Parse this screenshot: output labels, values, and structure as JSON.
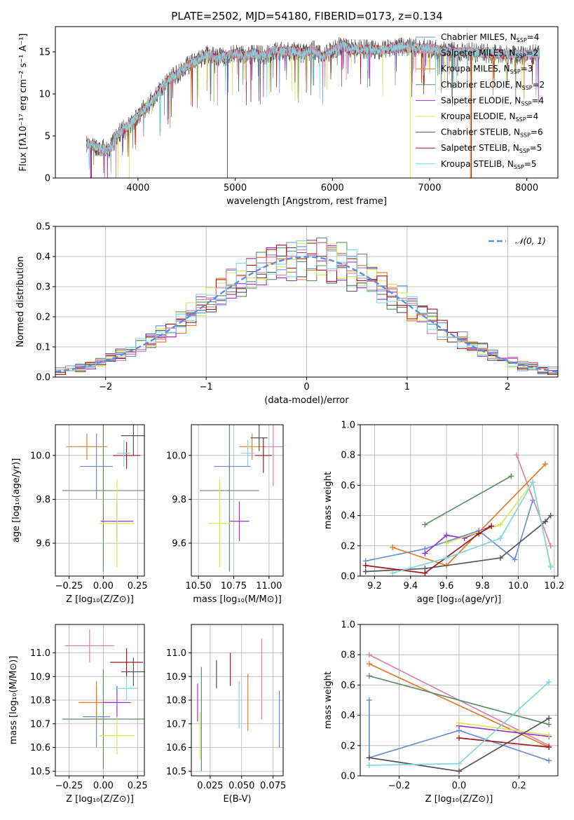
{
  "figure_title": "PLATE=2502, MJD=54180, FIBERID=0173, z=0.134",
  "colors": {
    "c1": "#6a8fd8",
    "c2": "#e07b2a",
    "c3": "#5e8e68",
    "c4": "#9932cc",
    "c5": "#d4e85a",
    "c6": "#555555",
    "c7": "#a0191e",
    "c8": "#e07fa8",
    "c9": "#7fd6e0"
  },
  "chart_data": [
    {
      "type": "line",
      "id": "spectrum",
      "xlabel": "wavelength [Angstrom, rest frame]",
      "ylabel": "Flux [fλ10⁻¹⁷ erg cm⁻² s⁻¹ A⁻¹]",
      "xlim": [
        3150,
        8320
      ],
      "ylim": [
        0,
        18
      ],
      "xticks": [
        4000,
        5000,
        6000,
        7000,
        8000
      ],
      "yticks": [
        0,
        5,
        10,
        15
      ],
      "data_range": [
        3470,
        8130
      ],
      "envelope": [
        [
          3470,
          4.0
        ],
        [
          3550,
          3.8
        ],
        [
          3700,
          3.3
        ],
        [
          3800,
          5.3
        ],
        [
          3900,
          6.2
        ],
        [
          4000,
          7.4
        ],
        [
          4100,
          8.6
        ],
        [
          4200,
          10.0
        ],
        [
          4300,
          11.6
        ],
        [
          4400,
          12.3
        ],
        [
          4500,
          13.3
        ],
        [
          4600,
          13.9
        ],
        [
          4700,
          14.7
        ],
        [
          4800,
          14.3
        ],
        [
          4900,
          14.5
        ],
        [
          5000,
          14.8
        ],
        [
          5100,
          14.5
        ],
        [
          5200,
          14.8
        ],
        [
          5300,
          14.5
        ],
        [
          5400,
          15.2
        ],
        [
          5500,
          15.0
        ],
        [
          5600,
          15.1
        ],
        [
          5700,
          14.8
        ],
        [
          5800,
          15.3
        ],
        [
          5900,
          14.3
        ],
        [
          6000,
          15.2
        ],
        [
          6100,
          15.8
        ],
        [
          6200,
          15.3
        ],
        [
          6300,
          15.3
        ],
        [
          6400,
          15.3
        ],
        [
          6500,
          15.2
        ],
        [
          6600,
          15.4
        ],
        [
          6700,
          15.6
        ],
        [
          6800,
          15.5
        ],
        [
          7000,
          15.4
        ],
        [
          7200,
          15.0
        ],
        [
          7400,
          15.0
        ],
        [
          7600,
          14.8
        ],
        [
          7800,
          14.7
        ],
        [
          8000,
          14.6
        ],
        [
          8130,
          14.8
        ]
      ],
      "series": [
        {
          "name": "Chabrier MILES, N",
          "sub": "SSP",
          "suffix": "=4",
          "color_key": "c1"
        },
        {
          "name": "Salpeter MILES, N",
          "sub": "SSP",
          "suffix": "=2",
          "color_key": "c8"
        },
        {
          "name": "Kroupa MILES, N",
          "sub": "SSP",
          "suffix": "=3",
          "color_key": "c2"
        },
        {
          "name": "Chabrier ELODIE, N",
          "sub": "SSP",
          "suffix": "=2",
          "color_key": "c3"
        },
        {
          "name": "Salpeter ELODIE, N",
          "sub": "SSP",
          "suffix": "=4",
          "color_key": "c4"
        },
        {
          "name": "Kroupa ELODIE, N",
          "sub": "SSP",
          "suffix": "=4",
          "color_key": "c5"
        },
        {
          "name": "Chabrier STELIB, N",
          "sub": "SSP",
          "suffix": "=6",
          "color_key": "c6"
        },
        {
          "name": "Salpeter STELIB, N",
          "sub": "SSP",
          "suffix": "=5",
          "color_key": "c7"
        },
        {
          "name": "Kroupa STELIB, N",
          "sub": "SSP",
          "suffix": "=5",
          "color_key": "c9"
        }
      ],
      "drop_lines": [
        {
          "x": 3520,
          "color_key": "c2"
        },
        {
          "x": 3520,
          "color_key": "c7"
        },
        {
          "x": 3910,
          "color_key": "c5"
        },
        {
          "x": 4920,
          "color_key": "c6"
        },
        {
          "x": 6800,
          "color_key": "c5"
        },
        {
          "x": 7420,
          "color_key": "c2"
        },
        {
          "x": 7430,
          "color_key": "c7"
        }
      ]
    },
    {
      "type": "histogram",
      "id": "residuals",
      "xlabel": "(data-model)/error",
      "ylabel": "Normed distribution",
      "xlim": [
        -2.5,
        2.5
      ],
      "ylim": [
        0,
        0.5
      ],
      "xticks": [
        -2,
        -1,
        0,
        1,
        2
      ],
      "yticks": [
        0.0,
        0.1,
        0.2,
        0.3,
        0.4,
        0.5
      ],
      "bin_start": -2.5,
      "bin_width": 0.1,
      "curve": {
        "label": "N(0,1)",
        "color": "#5b8ee0"
      },
      "approx_series": [
        {
          "color_key": "c1",
          "seed": 1
        },
        {
          "color_key": "c2",
          "seed": 2
        },
        {
          "color_key": "c3",
          "seed": 3
        },
        {
          "color_key": "c4",
          "seed": 4
        },
        {
          "color_key": "c5",
          "seed": 5
        },
        {
          "color_key": "c6",
          "seed": 6
        },
        {
          "color_key": "c7",
          "seed": 7
        },
        {
          "color_key": "c8",
          "seed": 8
        },
        {
          "color_key": "c9",
          "seed": 9
        }
      ]
    },
    {
      "type": "scatter",
      "id": "Z-vs-age",
      "xlabel": "Z [log₁₀(Z/Z⊙)]",
      "ylabel": "age  [log₁₀(age/yr)]",
      "xlim": [
        -0.35,
        0.3
      ],
      "ylim": [
        9.45,
        10.14
      ],
      "xticks": [
        -0.25,
        0.0,
        0.25
      ],
      "xtick_labels": [
        "−0.25",
        "0.00",
        "0.25"
      ],
      "yticks": [
        9.6,
        9.8,
        10.0
      ],
      "points": [
        {
          "x": -0.05,
          "y": 9.95,
          "xerr": 0.12,
          "yerr": 0.15,
          "color_key": "c1"
        },
        {
          "x": -0.3,
          "y": 10.04,
          "xerr": 0.0,
          "yerr": 0.0,
          "color_key": "c8"
        },
        {
          "x": -0.12,
          "y": 10.04,
          "xerr": 0.15,
          "yerr": 0.06,
          "color_key": "c2"
        },
        {
          "x": 0.0,
          "y": 9.84,
          "xerr": 0.3,
          "yerr": 0.37,
          "color_key": "c3"
        },
        {
          "x": 0.1,
          "y": 9.7,
          "xerr": 0.12,
          "yerr": 0.09,
          "color_key": "c4"
        },
        {
          "x": 0.1,
          "y": 9.69,
          "xerr": 0.13,
          "yerr": 0.2,
          "color_key": "c5"
        },
        {
          "x": 0.22,
          "y": 10.09,
          "xerr": 0.09,
          "yerr": 0.09,
          "color_key": "c6"
        },
        {
          "x": 0.17,
          "y": 10.0,
          "xerr": 0.1,
          "yerr": 0.06,
          "color_key": "c7"
        },
        {
          "x": 0.15,
          "y": 10.01,
          "xerr": 0.05,
          "yerr": 0.06,
          "color_key": "c9"
        }
      ]
    },
    {
      "type": "scatter",
      "id": "mass-vs-age",
      "xlabel": "mass [log₁₀(M/M⊙)]",
      "xlim": [
        10.45,
        11.1
      ],
      "ylim": [
        9.45,
        10.14
      ],
      "xticks": [
        10.5,
        10.75,
        11.0
      ],
      "xtick_labels": [
        "10.50",
        "10.75",
        "11.00"
      ],
      "yticks": [
        9.6,
        9.8,
        10.0
      ],
      "points": [
        {
          "x": 10.74,
          "y": 9.95,
          "xerr": 0.13,
          "yerr": 0.0,
          "color_key": "c1"
        },
        {
          "x": 11.03,
          "y": 10.04,
          "xerr": 0.07,
          "yerr": 0.18,
          "color_key": "c8"
        },
        {
          "x": 10.88,
          "y": 10.04,
          "xerr": 0.09,
          "yerr": 0.06,
          "color_key": "c2"
        },
        {
          "x": 10.72,
          "y": 9.84,
          "xerr": 0.21,
          "yerr": 0.37,
          "color_key": "c3"
        },
        {
          "x": 10.79,
          "y": 9.7,
          "xerr": 0.07,
          "yerr": 0.09,
          "color_key": "c4"
        },
        {
          "x": 10.65,
          "y": 9.69,
          "xerr": 0.08,
          "yerr": 0.2,
          "color_key": "c5"
        },
        {
          "x": 10.93,
          "y": 10.08,
          "xerr": 0.06,
          "yerr": 0.06,
          "color_key": "c6"
        },
        {
          "x": 10.96,
          "y": 10.0,
          "xerr": 0.06,
          "yerr": 0.08,
          "color_key": "c7"
        },
        {
          "x": 10.85,
          "y": 10.01,
          "xerr": 0.05,
          "yerr": 0.06,
          "color_key": "c9"
        }
      ]
    },
    {
      "type": "line",
      "id": "age-vs-weight",
      "xlabel": "age  [log₁₀(age/yr)]",
      "ylabel": "mass weight",
      "xlim": [
        9.12,
        10.22
      ],
      "ylim": [
        0,
        1.0
      ],
      "xticks": [
        9.2,
        9.4,
        9.6,
        9.8,
        10.0,
        10.2
      ],
      "yticks": [
        0.0,
        0.2,
        0.4,
        0.6,
        0.8,
        1.0
      ],
      "series": [
        {
          "color_key": "c1",
          "points": [
            [
              9.15,
              0.1
            ],
            [
              9.48,
              0.18
            ],
            [
              9.78,
              0.3
            ],
            [
              9.98,
              0.11
            ],
            [
              10.08,
              0.5
            ]
          ]
        },
        {
          "color_key": "c8",
          "points": [
            [
              9.99,
              0.8
            ],
            [
              10.18,
              0.2
            ]
          ]
        },
        {
          "color_key": "c2",
          "points": [
            [
              9.3,
              0.19
            ],
            [
              9.6,
              0.07
            ],
            [
              10.15,
              0.74
            ]
          ]
        },
        {
          "color_key": "c3",
          "points": [
            [
              9.48,
              0.34
            ],
            [
              9.96,
              0.66
            ]
          ]
        },
        {
          "color_key": "c4",
          "points": [
            [
              9.48,
              0.15
            ],
            [
              9.6,
              0.27
            ],
            [
              9.7,
              0.25
            ],
            [
              9.85,
              0.33
            ]
          ]
        },
        {
          "color_key": "c5",
          "points": [
            [
              9.6,
              0.22
            ],
            [
              9.9,
              0.34
            ],
            [
              10.08,
              0.62
            ],
            [
              10.18,
              0.07
            ]
          ]
        },
        {
          "color_key": "c6",
          "points": [
            [
              9.15,
              0.03
            ],
            [
              9.48,
              0.05
            ],
            [
              9.9,
              0.12
            ],
            [
              10.15,
              0.36
            ],
            [
              10.18,
              0.4
            ]
          ]
        },
        {
          "color_key": "c7",
          "points": [
            [
              9.15,
              0.07
            ],
            [
              9.48,
              0.02
            ],
            [
              9.78,
              0.28
            ],
            [
              9.85,
              0.33
            ]
          ]
        },
        {
          "color_key": "c9",
          "points": [
            [
              9.3,
              0.02
            ],
            [
              9.6,
              0.12
            ],
            [
              9.9,
              0.25
            ],
            [
              10.08,
              0.62
            ],
            [
              10.18,
              0.06
            ]
          ]
        }
      ]
    },
    {
      "type": "scatter",
      "id": "Z-vs-mass",
      "xlabel": "Z [log₁₀(Z/Z⊙)]",
      "ylabel": "mass [log₁₀(M/M⊙)]",
      "xlim": [
        -0.35,
        0.3
      ],
      "ylim": [
        10.48,
        11.12
      ],
      "xticks": [
        -0.25,
        0.0,
        0.25
      ],
      "xtick_labels": [
        "−0.25",
        "0.00",
        "0.25"
      ],
      "yticks": [
        10.5,
        10.6,
        10.7,
        10.8,
        10.9,
        11.0
      ],
      "points": [
        {
          "x": -0.05,
          "y": 10.73,
          "xerr": 0.1,
          "yerr": 0.13,
          "color_key": "c1"
        },
        {
          "x": -0.1,
          "y": 11.03,
          "xerr": 0.18,
          "yerr": 0.07,
          "color_key": "c8"
        },
        {
          "x": -0.05,
          "y": 10.79,
          "xerr": 0.13,
          "yerr": 0.09,
          "color_key": "c2"
        },
        {
          "x": 0.0,
          "y": 10.72,
          "xerr": 0.3,
          "yerr": 0.21,
          "color_key": "c3"
        },
        {
          "x": 0.1,
          "y": 10.79,
          "xerr": 0.1,
          "yerr": 0.07,
          "color_key": "c4"
        },
        {
          "x": 0.1,
          "y": 10.65,
          "xerr": 0.13,
          "yerr": 0.08,
          "color_key": "c5"
        },
        {
          "x": 0.22,
          "y": 10.92,
          "xerr": 0.09,
          "yerr": 0.06,
          "color_key": "c6"
        },
        {
          "x": 0.17,
          "y": 10.96,
          "xerr": 0.12,
          "yerr": 0.06,
          "color_key": "c7"
        },
        {
          "x": 0.17,
          "y": 10.85,
          "xerr": 0.08,
          "yerr": 0.05,
          "color_key": "c9"
        }
      ]
    },
    {
      "type": "scatter",
      "id": "ebv-vs-mass",
      "xlabel": "E(B-V)",
      "xlim": [
        0.01,
        0.083
      ],
      "ylim": [
        10.48,
        11.12
      ],
      "xticks": [
        0.025,
        0.05,
        0.075
      ],
      "xtick_labels": [
        "0.025",
        "0.050",
        "0.075"
      ],
      "yticks": [
        10.5,
        10.6,
        10.7,
        10.8,
        10.9,
        11.0
      ],
      "points": [
        {
          "x": 0.08,
          "y": 10.72,
          "xerr": 0,
          "yerr": 0.12,
          "color_key": "c1"
        },
        {
          "x": 0.066,
          "y": 10.89,
          "xerr": 0,
          "yerr": 0.17,
          "color_key": "c8"
        },
        {
          "x": 0.055,
          "y": 10.79,
          "xerr": 0,
          "yerr": 0.12,
          "color_key": "c2"
        },
        {
          "x": 0.018,
          "y": 10.72,
          "xerr": 0,
          "yerr": 0.22,
          "color_key": "c3"
        },
        {
          "x": 0.015,
          "y": 10.79,
          "xerr": 0,
          "yerr": 0.08,
          "color_key": "c4"
        },
        {
          "x": 0.017,
          "y": 10.65,
          "xerr": 0,
          "yerr": 0.1,
          "color_key": "c5"
        },
        {
          "x": 0.03,
          "y": 10.91,
          "xerr": 0,
          "yerr": 0.06,
          "color_key": "c6"
        },
        {
          "x": 0.041,
          "y": 10.93,
          "xerr": 0,
          "yerr": 0.07,
          "color_key": "c7"
        },
        {
          "x": 0.048,
          "y": 10.78,
          "xerr": 0,
          "yerr": 0.1,
          "color_key": "c9"
        }
      ]
    },
    {
      "type": "line",
      "id": "Z-vs-weight",
      "xlabel": "Z [log₁₀(Z/Z⊙)]",
      "ylabel": "mass weight",
      "xlim": [
        -0.33,
        0.33
      ],
      "ylim": [
        0,
        1.0
      ],
      "xticks": [
        -0.2,
        0.0,
        0.2
      ],
      "xtick_labels": [
        "−0.2",
        "0.0",
        "0.2"
      ],
      "yticks": [
        0.0,
        0.2,
        0.4,
        0.6,
        0.8,
        1.0
      ],
      "series": [
        {
          "color_key": "c1",
          "points": [
            [
              -0.3,
              0.5
            ],
            [
              -0.3,
              0.12
            ],
            [
              0.0,
              0.3
            ],
            [
              0.3,
              0.1
            ]
          ]
        },
        {
          "color_key": "c8",
          "points": [
            [
              -0.3,
              0.8
            ],
            [
              0.3,
              0.2
            ]
          ]
        },
        {
          "color_key": "c2",
          "points": [
            [
              -0.3,
              0.74
            ],
            [
              0.3,
              0.19
            ]
          ]
        },
        {
          "color_key": "c3",
          "points": [
            [
              -0.3,
              0.66
            ],
            [
              0.3,
              0.34
            ]
          ]
        },
        {
          "color_key": "c4",
          "points": [
            [
              0.0,
              0.33
            ],
            [
              0.3,
              0.26
            ]
          ]
        },
        {
          "color_key": "c5",
          "points": [
            [
              0.0,
              0.35
            ],
            [
              0.3,
              0.27
            ]
          ]
        },
        {
          "color_key": "c6",
          "points": [
            [
              -0.3,
              0.12
            ],
            [
              0.0,
              0.03
            ],
            [
              0.3,
              0.38
            ]
          ]
        },
        {
          "color_key": "c7",
          "points": [
            [
              0.0,
              0.25
            ],
            [
              0.3,
              0.19
            ]
          ]
        },
        {
          "color_key": "c9",
          "points": [
            [
              -0.3,
              0.07
            ],
            [
              0.0,
              0.08
            ],
            [
              0.3,
              0.62
            ]
          ]
        }
      ]
    }
  ]
}
